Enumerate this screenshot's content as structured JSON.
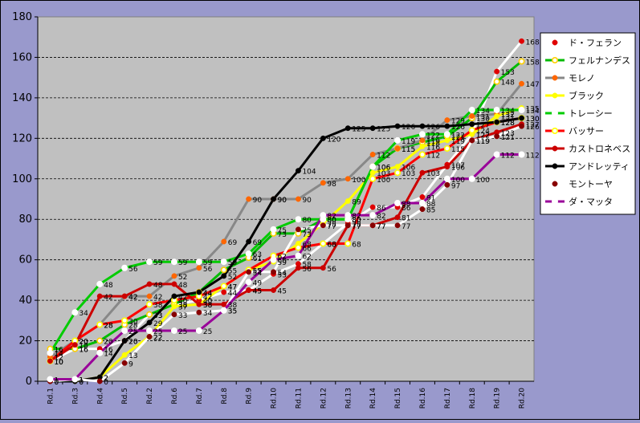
{
  "chart_data": {
    "type": "line",
    "title": "",
    "xlabel": "",
    "ylabel": "",
    "ylim": [
      0,
      180
    ],
    "yticks": [
      0,
      20,
      40,
      60,
      80,
      100,
      120,
      140,
      160,
      180
    ],
    "grid": "horizontal dashed",
    "legend_position": "right",
    "plot_background": "#c0c0c0",
    "categories": [
      "Rd.1",
      "Rd.3",
      "Rd.4",
      "Rd.5",
      "Rd.2",
      "Rd.6",
      "Rd.7",
      "Rd.8",
      "Rd.9",
      "Rd.10",
      "Rd.11",
      "Rd.12",
      "Rd.13",
      "Rd.14",
      "Rd.15",
      "Rd.16",
      "Rd.17",
      "Rd.18",
      "Rd.19",
      "Rd.20"
    ],
    "series": [
      {
        "name": "ド・フェラン",
        "color": "#ffffff",
        "marker": "#e00000",
        "marker_style": "dot-red",
        "values": [
          10,
          16,
          16,
          20,
          33,
          38,
          40,
          44,
          45,
          53,
          58,
          68,
          78,
          86,
          86,
          91,
          107,
          122,
          153,
          168
        ],
        "labels": [
          10,
          16,
          16,
          20,
          33,
          38,
          40,
          44,
          45,
          53,
          58,
          68,
          78,
          86,
          86,
          91,
          107,
          122,
          153,
          168
        ]
      },
      {
        "name": "フェルナンデス",
        "color": "#00bb00",
        "marker": "#ffd000",
        "marker_style": "ring-yellow",
        "values": [
          16,
          16,
          20,
          28,
          33,
          38,
          44,
          55,
          61,
          73,
          73,
          80,
          80,
          106,
          115,
          118,
          121,
          130,
          148,
          158
        ],
        "labels": [
          16,
          16,
          20,
          28,
          33,
          38,
          44,
          55,
          61,
          73,
          73,
          80,
          80,
          106,
          115,
          118,
          121,
          130,
          148,
          158
        ]
      },
      {
        "name": "モレノ",
        "color": "#888888",
        "marker": "#ff6600",
        "marker_style": "dot-orange",
        "values": [
          12,
          20,
          28,
          42,
          42,
          52,
          56,
          69,
          90,
          90,
          90,
          98,
          100,
          112,
          115,
          119,
          129,
          131,
          132,
          147
        ],
        "labels": [
          12,
          20,
          28,
          42,
          42,
          52,
          56,
          69,
          90,
          90,
          90,
          98,
          100,
          112,
          115,
          119,
          129,
          131,
          132,
          147
        ]
      },
      {
        "name": "ブラック",
        "color": "#ffff00",
        "marker": "#ffff00",
        "marker_style": "dot-yellow",
        "values": [
          0,
          0,
          2,
          13,
          22,
          37,
          38,
          47,
          55,
          59,
          68,
          78,
          89,
          103,
          106,
          116,
          119,
          122,
          131,
          135
        ],
        "labels": [
          0,
          0,
          2,
          13,
          22,
          37,
          38,
          47,
          55,
          59,
          68,
          78,
          89,
          103,
          106,
          116,
          119,
          122,
          131,
          135
        ]
      },
      {
        "name": "トレーシー",
        "color": "#00cc00",
        "marker": "#ffffff",
        "marker_style": "ring-white",
        "values": [
          14,
          34,
          48,
          56,
          59,
          59,
          59,
          59,
          63,
          75,
          80,
          80,
          80,
          106,
          119,
          122,
          122,
          134,
          134,
          134
        ],
        "labels": [
          14,
          34,
          48,
          56,
          59,
          59,
          59,
          59,
          63,
          75,
          80,
          80,
          80,
          106,
          119,
          122,
          122,
          134,
          134,
          134
        ]
      },
      {
        "name": "バッサー",
        "color": "#ff0000",
        "marker": "#ffff00",
        "marker_style": "ring-yellow",
        "values": [
          10,
          20,
          28,
          30,
          38,
          40,
          42,
          47,
          55,
          62,
          66,
          68,
          68,
          100,
          103,
          112,
          115,
          124,
          128,
          130
        ],
        "labels": [
          10,
          20,
          28,
          30,
          38,
          40,
          42,
          47,
          55,
          62,
          66,
          68,
          68,
          100,
          103,
          112,
          115,
          124,
          128,
          130
        ]
      },
      {
        "name": "カストロネベス",
        "color": "#cc0000",
        "marker": "#cc0000",
        "marker_style": "dot-red",
        "values": [
          10,
          18,
          42,
          42,
          48,
          48,
          38,
          38,
          45,
          45,
          56,
          56,
          77,
          77,
          81,
          103,
          106,
          119,
          123,
          127
        ],
        "labels": [
          10,
          18,
          42,
          42,
          48,
          48,
          38,
          38,
          45,
          45,
          56,
          56,
          77,
          77,
          81,
          103,
          106,
          119,
          123,
          127
        ]
      },
      {
        "name": "アンドレッティ",
        "color": "#000000",
        "marker": "#000000",
        "marker_style": "dot-black",
        "values": [
          0,
          0,
          2,
          20,
          29,
          42,
          44,
          52,
          69,
          90,
          104,
          120,
          125,
          125,
          126,
          126,
          126,
          127,
          128,
          130
        ],
        "labels": [
          0,
          0,
          2,
          20,
          29,
          42,
          44,
          52,
          69,
          90,
          104,
          120,
          125,
          125,
          126,
          126,
          126,
          127,
          128,
          130
        ]
      },
      {
        "name": "モントーヤ",
        "color": "#ffffff",
        "marker": "#880000",
        "marker_style": "dot-darkred",
        "values": [
          0,
          1,
          0,
          9,
          22,
          33,
          34,
          35,
          54,
          54,
          75,
          77,
          77,
          77,
          77,
          85,
          97,
          119,
          121,
          126
        ],
        "labels": [
          0,
          1,
          0,
          9,
          22,
          33,
          34,
          35,
          54,
          54,
          75,
          77,
          77,
          77,
          77,
          85,
          97,
          119,
          121,
          126
        ]
      },
      {
        "name": "ダ・マッタ",
        "color": "#990099",
        "marker": "#ffffff",
        "marker_style": "ring-white",
        "values": [
          1,
          1,
          14,
          25,
          25,
          25,
          25,
          35,
          49,
          60,
          62,
          82,
          82,
          82,
          88,
          88,
          100,
          100,
          112,
          112
        ],
        "labels": [
          1,
          1,
          14,
          25,
          25,
          25,
          25,
          35,
          49,
          60,
          62,
          82,
          82,
          82,
          88,
          88,
          100,
          100,
          112,
          112
        ]
      }
    ]
  }
}
